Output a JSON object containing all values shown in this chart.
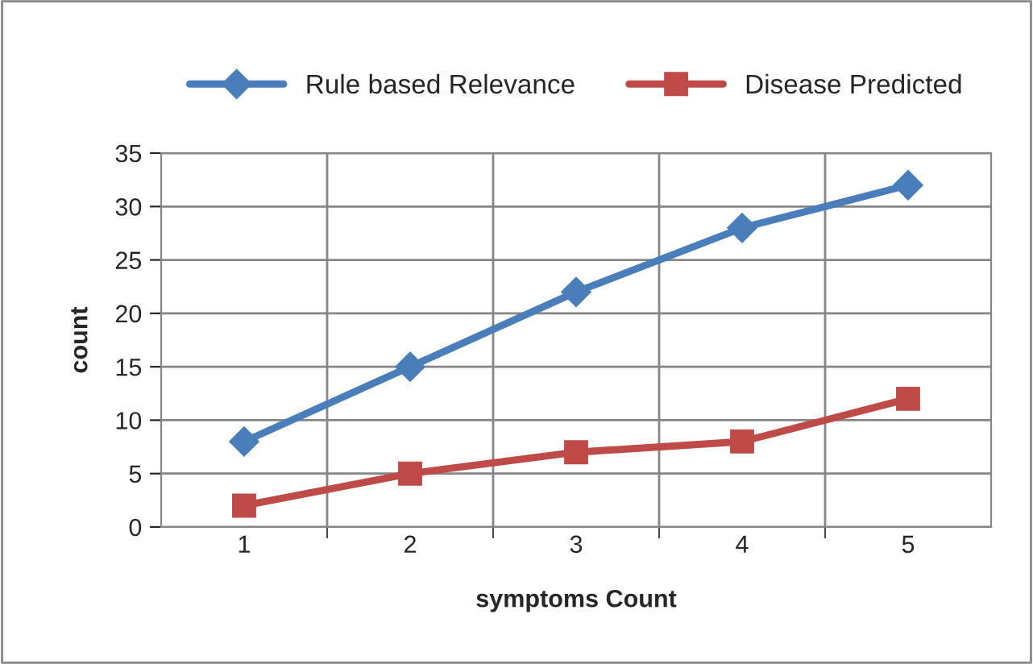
{
  "chart_data": {
    "type": "line",
    "xlabel": "symptoms Count",
    "ylabel": "count",
    "categories": [
      "1",
      "2",
      "3",
      "4",
      "5"
    ],
    "series": [
      {
        "name": "Rule based Relevance",
        "color": "#4a7ebb",
        "marker": "diamond",
        "values": [
          8,
          15,
          22,
          28,
          32
        ]
      },
      {
        "name": "Disease Predicted",
        "color": "#be4b48",
        "marker": "square",
        "values": [
          2,
          5,
          7,
          8,
          12
        ]
      }
    ],
    "ylim": [
      0,
      35
    ],
    "yticks": [
      0,
      5,
      10,
      15,
      20,
      25,
      30,
      35
    ],
    "grid": true,
    "legend": "top",
    "line_style": "solid"
  }
}
